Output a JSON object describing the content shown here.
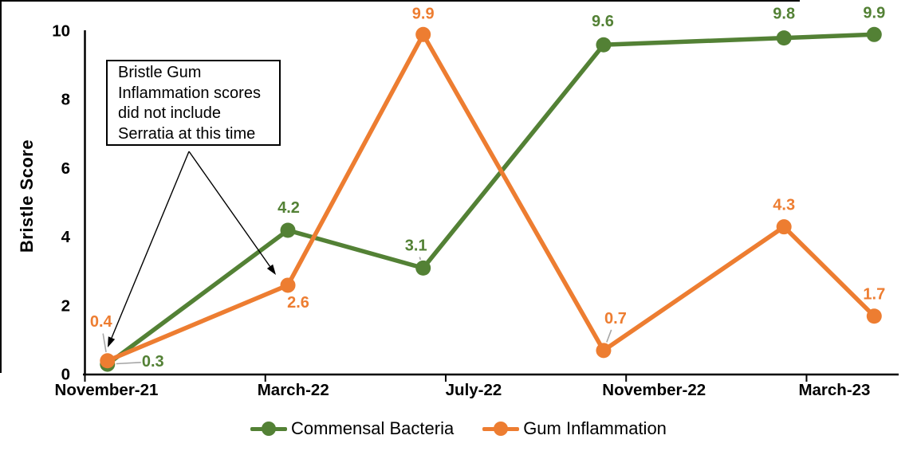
{
  "chart_data": {
    "type": "line",
    "title": "",
    "xlabel": "",
    "ylabel": "Bristle Score",
    "ylim": [
      0,
      10
    ],
    "yticks": [
      0,
      2,
      4,
      6,
      8,
      10
    ],
    "grid": false,
    "legend_position": "bottom-center",
    "x_axis": {
      "tick_labels": [
        "November-21",
        "March-22",
        "July-22",
        "November-22",
        "March-23"
      ],
      "tick_months": [
        0,
        4,
        8,
        12,
        16
      ],
      "tick_label_dx": [
        27,
        35,
        35,
        35,
        35
      ],
      "range_months": [
        0,
        18.05
      ]
    },
    "leader_color": "#A6A6A6",
    "series": [
      {
        "name": "Commensal Bacteria",
        "color": "#538135",
        "x_months": [
          0.5,
          4.5,
          7.5,
          11.5,
          15.5,
          17.5
        ],
        "values": [
          0.3,
          4.2,
          3.1,
          9.6,
          9.8,
          9.9
        ],
        "point_labels": [
          "0.3",
          "4.2",
          "3.1",
          "9.6",
          "9.8",
          "9.9"
        ],
        "label_offsets": [
          [
            57,
            -3
          ],
          [
            1,
            -28
          ],
          [
            -9,
            -28
          ],
          [
            -1,
            -29
          ],
          [
            0,
            -30
          ],
          [
            0,
            -27
          ]
        ],
        "label_leaders": [
          true,
          false,
          true,
          false,
          false,
          false
        ]
      },
      {
        "name": "Gum Inflammation",
        "color": "#ED7D31",
        "x_months": [
          0.5,
          4.5,
          7.5,
          11.5,
          15.5,
          17.5
        ],
        "values": [
          0.4,
          2.6,
          9.9,
          0.7,
          4.3,
          1.7
        ],
        "point_labels": [
          "0.4",
          "2.6",
          "9.9",
          "0.7",
          "4.3",
          "1.7"
        ],
        "label_offsets": [
          [
            -8,
            -49
          ],
          [
            13,
            22
          ],
          [
            0,
            -26
          ],
          [
            15,
            -40
          ],
          [
            0,
            -27
          ],
          [
            0,
            -27
          ]
        ],
        "label_leaders": [
          true,
          false,
          false,
          true,
          false,
          false
        ]
      }
    ]
  },
  "callout": {
    "lines": [
      "Bristle Gum",
      "Inflammation scores",
      "did not include",
      "Serratia at this time"
    ]
  }
}
